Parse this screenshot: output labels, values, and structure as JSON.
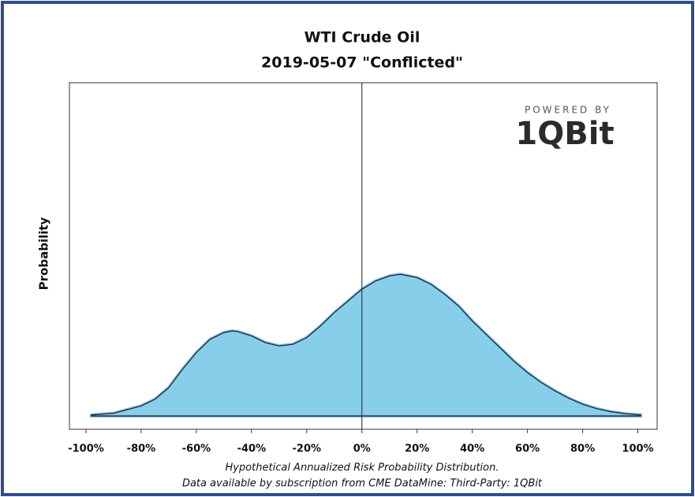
{
  "chart_data": {
    "type": "area",
    "title": "WTI Crude Oil",
    "subtitle": "2019-05-07 \"Conflicted\"",
    "ylabel": "Probability",
    "xlabel": [
      "Hypothetical Annualized Risk Probability Distribution.",
      "Data available by subscription from CME DataMine:  Third-Party: 1QBit"
    ],
    "logo": {
      "tagline": "POWERED BY",
      "name": "1QBit"
    },
    "x": [
      -98,
      -90,
      -80,
      -75,
      -70,
      -65,
      -60,
      -55,
      -50,
      -47,
      -45,
      -40,
      -35,
      -30,
      -25,
      -20,
      -15,
      -10,
      -5,
      0,
      5,
      10,
      14,
      20,
      25,
      30,
      35,
      40,
      45,
      50,
      55,
      60,
      65,
      70,
      75,
      80,
      85,
      90,
      95,
      101
    ],
    "values": [
      0.3,
      0.8,
      3,
      5,
      8.5,
      14,
      19,
      23,
      25,
      25.5,
      25.3,
      24,
      22,
      21,
      21.5,
      23.5,
      27,
      31,
      34.5,
      38,
      40.5,
      42,
      42.5,
      41.5,
      39.5,
      36.5,
      33,
      28.5,
      24.5,
      20.5,
      16.5,
      13,
      10,
      7.5,
      5.3,
      3.5,
      2.2,
      1.3,
      0.7,
      0.3
    ],
    "color": "#87ceeb",
    "line_color": "#1f2d3a",
    "xlim": [
      -106,
      107
    ],
    "ylim": [
      -4,
      100
    ],
    "xticks": [
      {
        "value": -100,
        "label": "-100%"
      },
      {
        "value": -80,
        "label": "-80%"
      },
      {
        "value": -60,
        "label": "-60%"
      },
      {
        "value": -40,
        "label": "-40%"
      },
      {
        "value": -20,
        "label": "-20%"
      },
      {
        "value": 0,
        "label": "0%"
      },
      {
        "value": 20,
        "label": "20%"
      },
      {
        "value": 40,
        "label": "40%"
      },
      {
        "value": 60,
        "label": "60%"
      },
      {
        "value": 80,
        "label": "80%"
      },
      {
        "value": 100,
        "label": "100%"
      }
    ],
    "vline": 0
  }
}
